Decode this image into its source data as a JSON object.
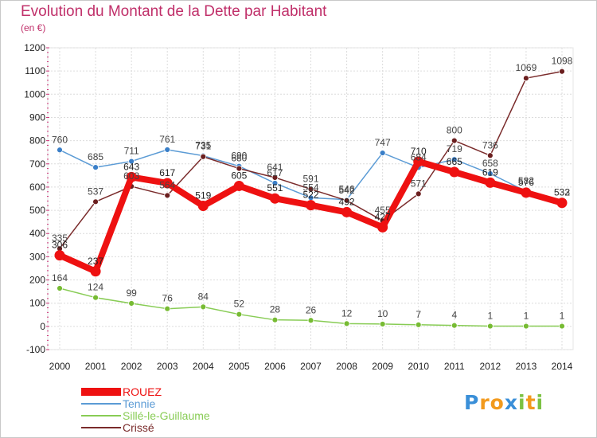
{
  "title": "Evolution du Montant de la Dette par Habitant",
  "unit": "(en €)",
  "logo": {
    "letters": [
      "P",
      "r",
      "o",
      "x",
      "i",
      "t",
      "i"
    ],
    "colors": [
      "#3a8fd8",
      "#f29a1d",
      "#f29a1d",
      "#3a8fd8",
      "#7bc142",
      "#f29a1d",
      "#7bc142"
    ]
  },
  "chart_data": {
    "type": "line",
    "x": [
      "2000",
      "2001",
      "2002",
      "2003",
      "2004",
      "2005",
      "2006",
      "2007",
      "2008",
      "2009",
      "2010",
      "2011",
      "2012",
      "2013",
      "2014"
    ],
    "yticks": [
      "-100",
      "0",
      "100",
      "200",
      "300",
      "400",
      "500",
      "600",
      "700",
      "800",
      "900",
      "1000",
      "1100",
      "1200"
    ],
    "ylim": [
      -100,
      1200
    ],
    "grid": true,
    "legend_position": "bottom-left",
    "series": [
      {
        "name": "ROUEZ",
        "color": "#ee1111",
        "values": [
          306,
          237,
          643,
          617,
          519,
          605,
          551,
          522,
          492,
          427,
          710,
          665,
          619,
          576,
          532
        ]
      },
      {
        "name": "Tennie",
        "color": "#5b9bd5",
        "values": [
          760,
          685,
          711,
          761,
          735,
          690,
          617,
          554,
          546,
          747,
          684,
          719,
          658,
          582,
          533
        ]
      },
      {
        "name": "Sillé-le-Guillaume",
        "color": "#88cc55",
        "values": [
          164,
          124,
          99,
          76,
          84,
          52,
          28,
          26,
          12,
          10,
          7,
          4,
          1,
          1,
          1
        ]
      },
      {
        "name": "Crissé",
        "color": "#7a2b2b",
        "values": [
          335,
          537,
          603,
          564,
          731,
          680,
          641,
          591,
          542,
          455,
          571,
          800,
          736,
          1069,
          1098
        ]
      }
    ]
  }
}
